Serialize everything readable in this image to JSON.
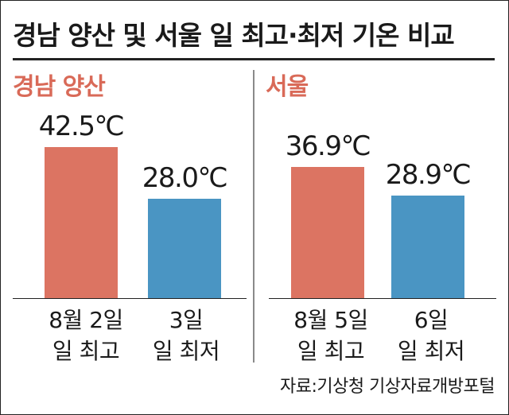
{
  "title": "경남 양산 및 서울 일 최고·최저 기온 비교",
  "source": "자료:기상청 기상자료개방포털",
  "colors": {
    "high": "#dc7462",
    "low": "#4a95c3",
    "panel_title": "#d96a58"
  },
  "chart_data": [
    {
      "type": "bar",
      "panel_title": "경남 양산",
      "categories": [
        {
          "line1": "8월 2일",
          "line2": "일 최고"
        },
        {
          "line1": "3일",
          "line2": "일 최저"
        }
      ],
      "values": [
        42.5,
        28.0
      ],
      "value_labels": [
        "42.5℃",
        "28.0℃"
      ],
      "unit": "℃",
      "ylim": [
        0,
        55
      ]
    },
    {
      "type": "bar",
      "panel_title": "서울",
      "categories": [
        {
          "line1": "8월 5일",
          "line2": "일 최고"
        },
        {
          "line1": "6일",
          "line2": "일 최저"
        }
      ],
      "values": [
        36.9,
        28.9
      ],
      "value_labels": [
        "36.9℃",
        "28.9℃"
      ],
      "unit": "℃",
      "ylim": [
        0,
        55
      ]
    }
  ]
}
